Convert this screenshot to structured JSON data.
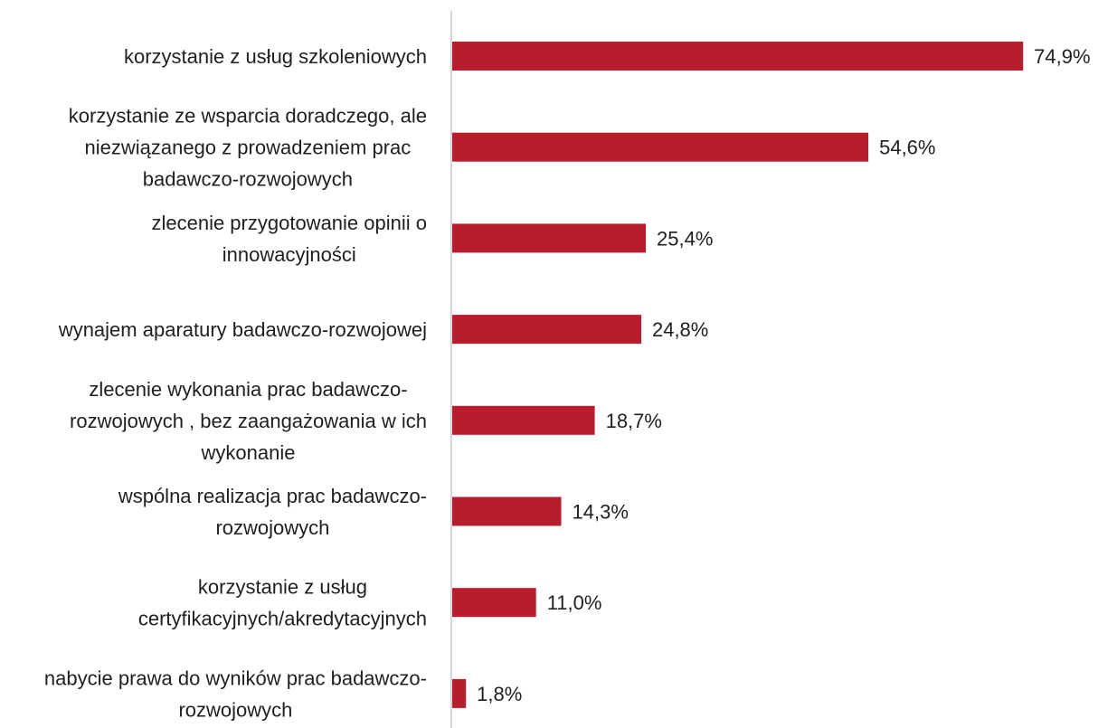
{
  "chart_data": {
    "type": "bar",
    "orientation": "horizontal",
    "categories": [
      [
        "korzystanie z usług szkoleniowych"
      ],
      [
        "korzystanie ze wsparcia doradczego, ale",
        "niezwiązanego z prowadzeniem prac",
        "badawczo-rozwojowych"
      ],
      [
        "zlecenie przygotowanie opinii o",
        "innowacyjności"
      ],
      [
        "wynajem aparatury badawczo-rozwojowej"
      ],
      [
        "zlecenie wykonania prac badawczo-",
        "rozwojowych , bez zaangażowania w ich",
        "wykonanie"
      ],
      [
        "wspólna realizacja prac badawczo-",
        "rozwojowych"
      ],
      [
        "korzystanie z usług",
        "certyfikacyjnych/akredytacyjnych"
      ],
      [
        "nabycie prawa do wyników prac badawczo-",
        "rozwojowych"
      ]
    ],
    "values": [
      74.9,
      54.6,
      25.4,
      24.8,
      18.7,
      14.3,
      11.0,
      1.8
    ],
    "value_labels": [
      "74,9%",
      "54,6%",
      "25,4%",
      "24,8%",
      "18,7%",
      "14,3%",
      "11,0%",
      "1,8%"
    ],
    "unit": "%",
    "title": "",
    "xlabel": "",
    "ylabel": "",
    "xlim": [
      0,
      75
    ],
    "grid": false,
    "legend": "none",
    "colors": {
      "bar": "#b91c2c",
      "axis": "#c8c8c8",
      "text": "#1f1f1f"
    }
  }
}
